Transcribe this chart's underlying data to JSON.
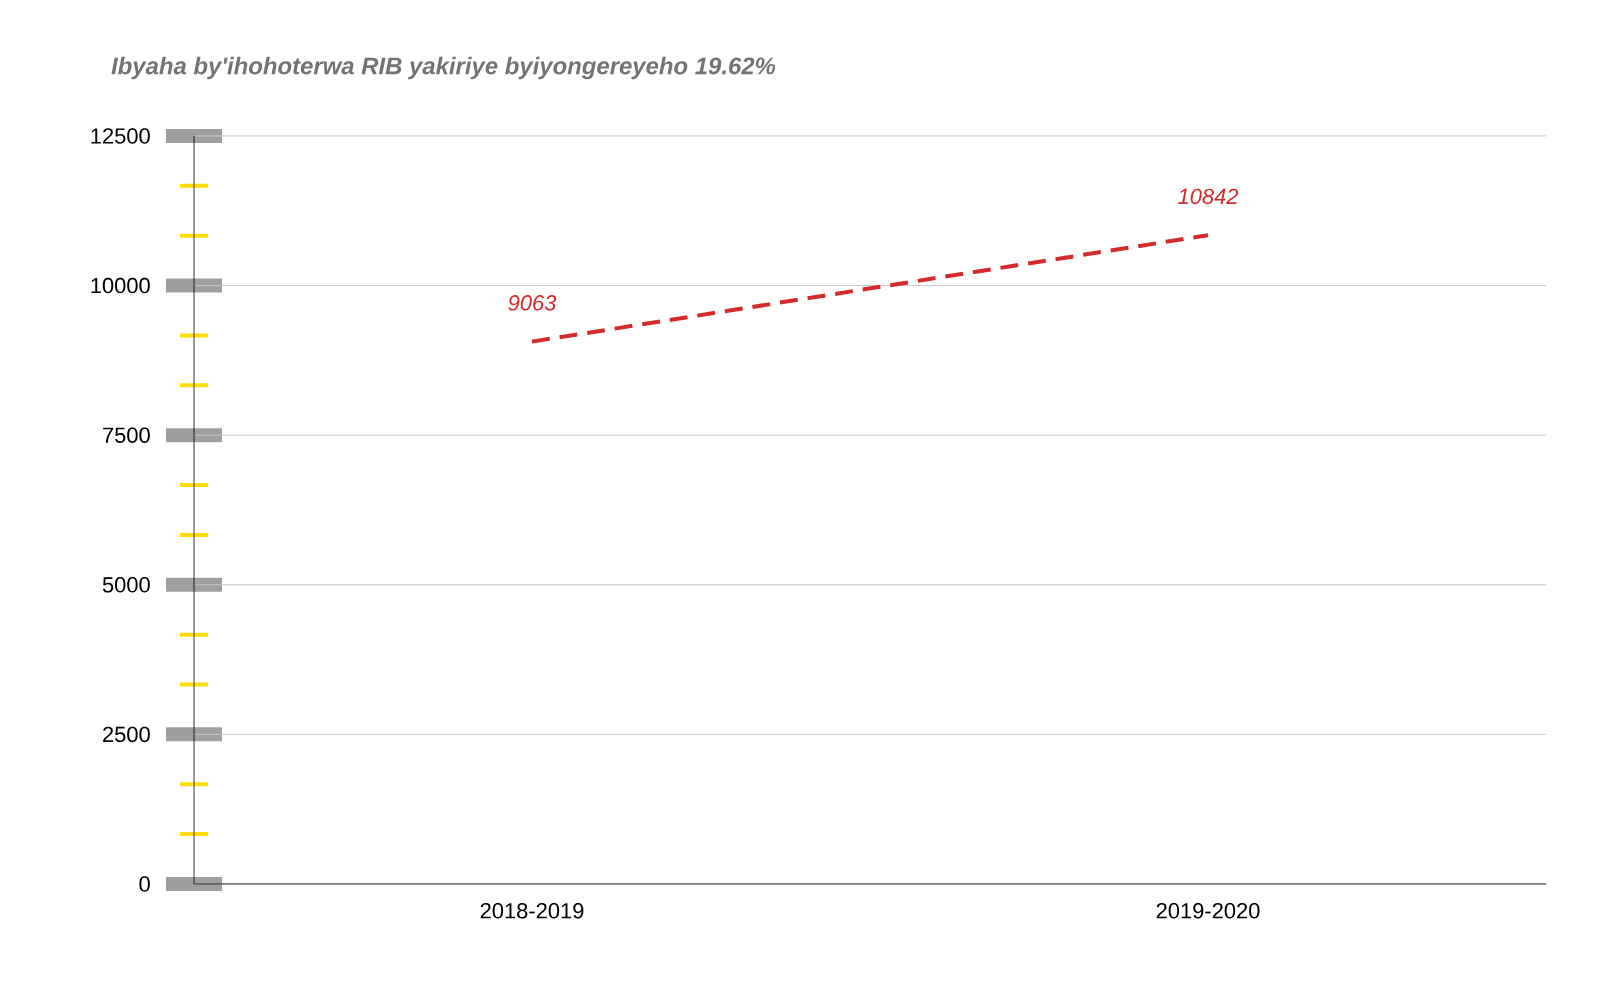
{
  "chart_data": {
    "type": "line",
    "title": "Ibyaha by'ihohoterwa RIB yakiriye byiyongereyeho 19.62%",
    "categories": [
      "2018-2019",
      "2019-2020"
    ],
    "series": [
      {
        "color": "#d42a2a",
        "values": [
          9063,
          10842
        ]
      }
    ],
    "ylim": [
      0,
      12500
    ],
    "yticks": [
      0,
      2500,
      5000,
      7500,
      10000,
      12500
    ],
    "grid": "y",
    "data_labels": true,
    "line_style": "dashed",
    "marker": "none"
  }
}
